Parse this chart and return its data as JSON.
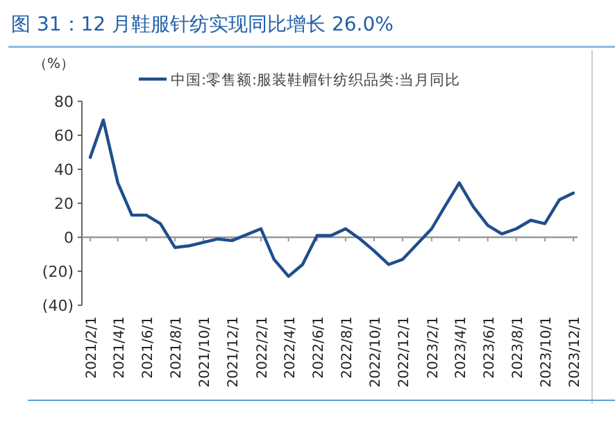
{
  "chart_data": {
    "type": "line",
    "title": "图 31：12 月鞋服针纺实现同比增长 26.0%",
    "ylabel": "（%）",
    "x": [
      "2021-02",
      "2021-03",
      "2021-04",
      "2021-05",
      "2021-06",
      "2021-07",
      "2021-08",
      "2021-09",
      "2021-10",
      "2021-11",
      "2021-12",
      "2022-02",
      "2022-03",
      "2022-04",
      "2022-05",
      "2022-06",
      "2022-07",
      "2022-08",
      "2022-09",
      "2022-10",
      "2022-11",
      "2022-12",
      "2023-02",
      "2023-03",
      "2023-04",
      "2023-05",
      "2023-06",
      "2023-07",
      "2023-08",
      "2023-09",
      "2023-10",
      "2023-11",
      "2023-12"
    ],
    "series": [
      {
        "name": "中国:零售额:服装鞋帽针纺织品类:当月同比",
        "color": "#1f4e8c",
        "values": [
          47,
          69,
          32,
          13,
          13,
          8,
          -6,
          -5,
          -3,
          -1,
          -2,
          5,
          -13,
          -23,
          -16,
          1,
          1,
          5,
          -1,
          -8,
          -16,
          -13,
          5,
          18,
          32,
          18,
          7,
          2,
          5,
          10,
          8,
          22,
          26
        ]
      }
    ],
    "xlim": [
      "2021-02",
      "2023-12"
    ],
    "xticks": [
      {
        "value": "2021-02",
        "label": "2021/2/1"
      },
      {
        "value": "2021-04",
        "label": "2021/4/1"
      },
      {
        "value": "2021-06",
        "label": "2021/6/1"
      },
      {
        "value": "2021-08",
        "label": "2021/8/1"
      },
      {
        "value": "2021-10",
        "label": "2021/10/1"
      },
      {
        "value": "2021-12",
        "label": "2021/12/1"
      },
      {
        "value": "2022-02",
        "label": "2022/2/1"
      },
      {
        "value": "2022-04",
        "label": "2022/4/1"
      },
      {
        "value": "2022-06",
        "label": "2022/6/1"
      },
      {
        "value": "2022-08",
        "label": "2022/8/1"
      },
      {
        "value": "2022-10",
        "label": "2022/10/1"
      },
      {
        "value": "2022-12",
        "label": "2022/12/1"
      },
      {
        "value": "2023-02",
        "label": "2023/2/1"
      },
      {
        "value": "2023-04",
        "label": "2023/4/1"
      },
      {
        "value": "2023-06",
        "label": "2023/6/1"
      },
      {
        "value": "2023-08",
        "label": "2023/8/1"
      },
      {
        "value": "2023-10",
        "label": "2023/10/1"
      },
      {
        "value": "2023-12",
        "label": "2023/12/1"
      }
    ],
    "ylim": [
      -40,
      80
    ],
    "yticks": [
      {
        "value": -40,
        "label": "(40)"
      },
      {
        "value": -20,
        "label": "(20)"
      },
      0,
      20,
      40,
      60,
      80
    ],
    "legend": "top",
    "marker": "none",
    "line_style": "solid"
  }
}
